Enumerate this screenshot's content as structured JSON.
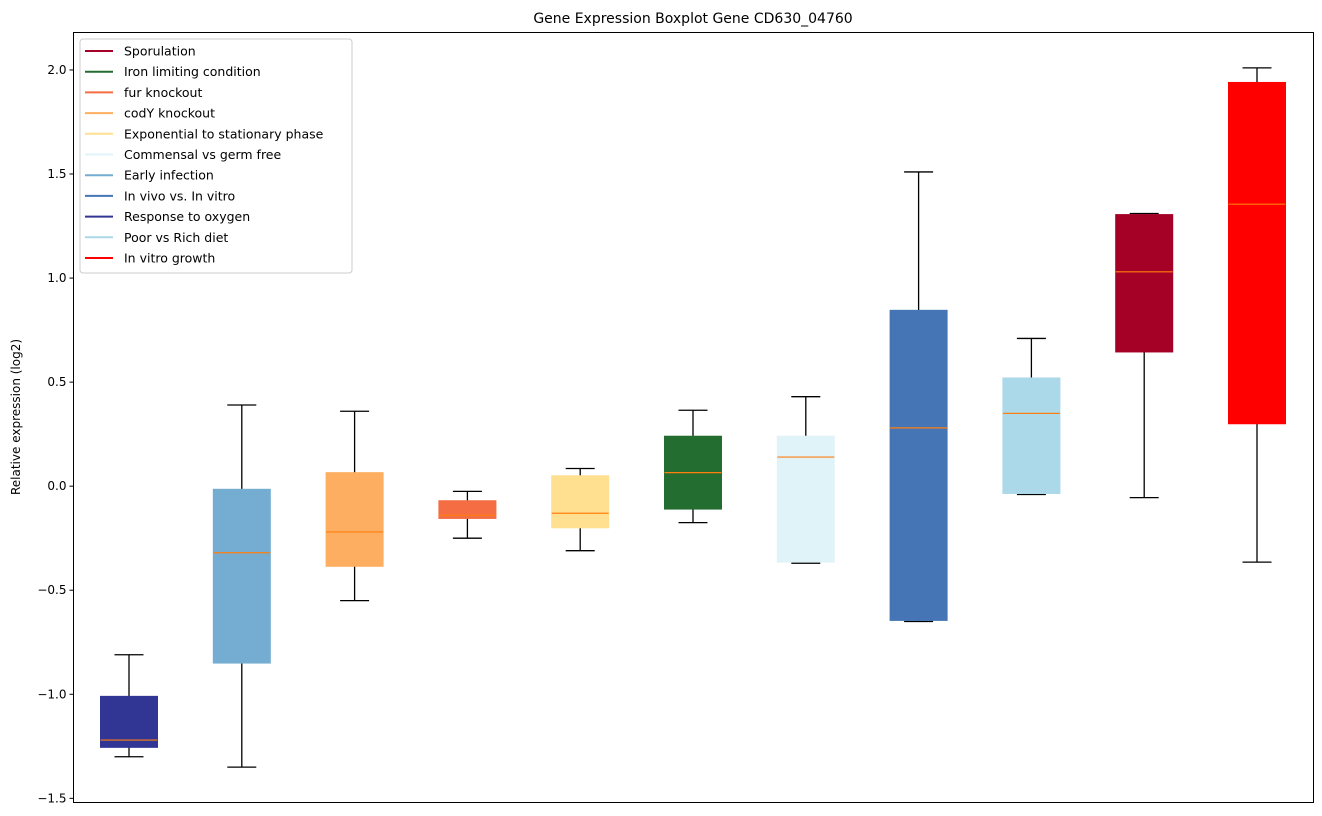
{
  "chart_data": {
    "type": "boxplot",
    "title": "Gene Expression Boxplot Gene CD630_04760",
    "xlabel": "",
    "ylabel": "Relative expression (log2)",
    "ylim": [
      -1.52,
      2.18
    ],
    "yticks": [
      -1.5,
      -1.0,
      -0.5,
      0.0,
      0.5,
      1.0,
      1.5,
      2.0
    ],
    "ytick_labels": [
      "−1.5",
      "−1.0",
      "−0.5",
      "0.0",
      "0.5",
      "1.0",
      "1.5",
      "2.0"
    ],
    "xticks_visible": false,
    "grid": false,
    "legend_position": "top-left",
    "median_color": "#ff7f0e",
    "whisker_color": "#000000",
    "legend": [
      {
        "label": "Sporulation",
        "color": "#a50026"
      },
      {
        "label": "Iron limiting condition",
        "color": "#226d2f"
      },
      {
        "label": "fur knockout",
        "color": "#f46d43"
      },
      {
        "label": "codY knockout",
        "color": "#fdae61"
      },
      {
        "label": "Exponential to stationary phase",
        "color": "#fee090"
      },
      {
        "label": "Commensal vs germ free",
        "color": "#e0f3f8"
      },
      {
        "label": "Early infection",
        "color": "#74add1"
      },
      {
        "label": "In vivo vs. In vitro",
        "color": "#4575b4"
      },
      {
        "label": "Response to oxygen",
        "color": "#313695"
      },
      {
        "label": "Poor vs Rich diet",
        "color": "#abd9e9"
      },
      {
        "label": "In vitro growth",
        "color": "#ff0000"
      }
    ],
    "boxes": [
      {
        "name": "Response to oxygen",
        "color": "#313695",
        "whisker_low": -1.3,
        "q1": -1.255,
        "median": -1.22,
        "q3": -1.01,
        "whisker_high": -0.81
      },
      {
        "name": "Early infection",
        "color": "#74add1",
        "whisker_low": -1.35,
        "q1": -0.85,
        "median": -0.32,
        "q3": -0.015,
        "whisker_high": 0.39
      },
      {
        "name": "codY knockout",
        "color": "#fdae61",
        "whisker_low": -0.55,
        "q1": -0.385,
        "median": -0.22,
        "q3": 0.065,
        "whisker_high": 0.36
      },
      {
        "name": "fur knockout",
        "color": "#f46d43",
        "whisker_low": -0.25,
        "q1": -0.155,
        "median": -0.14,
        "q3": -0.07,
        "whisker_high": -0.025
      },
      {
        "name": "Exponential to stationary phase",
        "color": "#fee090",
        "whisker_low": -0.31,
        "q1": -0.2,
        "median": -0.13,
        "q3": 0.05,
        "whisker_high": 0.085
      },
      {
        "name": "Iron limiting condition",
        "color": "#226d2f",
        "whisker_low": -0.175,
        "q1": -0.11,
        "median": 0.065,
        "q3": 0.24,
        "whisker_high": 0.365
      },
      {
        "name": "Commensal vs germ free",
        "color": "#e0f3f8",
        "whisker_low": -0.37,
        "q1": -0.365,
        "median": 0.14,
        "q3": 0.24,
        "whisker_high": 0.43
      },
      {
        "name": "In vivo vs. In vitro",
        "color": "#4575b4",
        "whisker_low": -0.65,
        "q1": -0.645,
        "median": 0.28,
        "q3": 0.845,
        "whisker_high": 1.51
      },
      {
        "name": "Poor vs Rich diet",
        "color": "#abd9e9",
        "whisker_low": -0.04,
        "q1": -0.035,
        "median": 0.35,
        "q3": 0.52,
        "whisker_high": 0.71
      },
      {
        "name": "Sporulation",
        "color": "#a50026",
        "whisker_low": -0.055,
        "q1": 0.645,
        "median": 1.03,
        "q3": 1.305,
        "whisker_high": 1.31
      },
      {
        "name": "In vitro growth",
        "color": "#ff0000",
        "whisker_low": -0.365,
        "q1": 0.3,
        "median": 1.355,
        "q3": 1.94,
        "whisker_high": 2.01
      }
    ]
  }
}
